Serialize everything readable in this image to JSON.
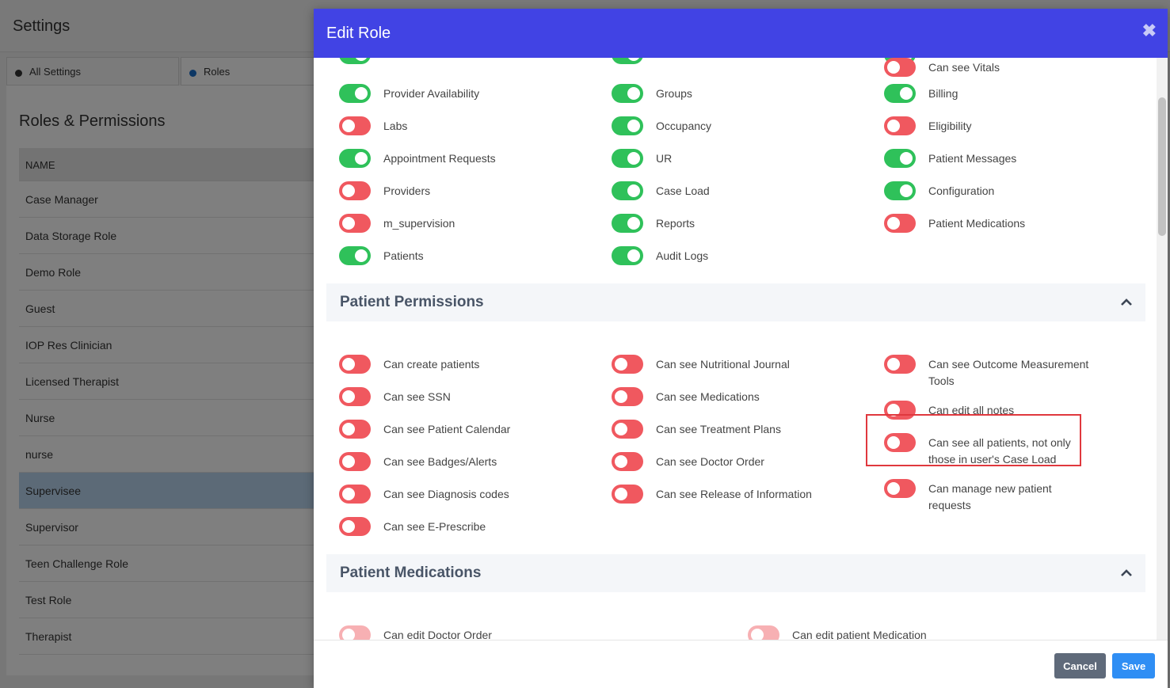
{
  "background": {
    "title": "Settings",
    "tabs": [
      {
        "label": "All Settings",
        "dot_color": "#333333"
      },
      {
        "label": "Roles",
        "dot_color": "#1a6fc9"
      }
    ],
    "section_title": "Roles & Permissions",
    "table_header": "NAME",
    "roles": [
      "Case Manager",
      "Data Storage Role",
      "Demo Role",
      "Guest",
      "IOP Res Clinician",
      "Licensed Therapist",
      "Nurse",
      "nurse",
      "Supervisee",
      "Supervisor",
      "Teen Challenge Role",
      "Test Role",
      "Therapist"
    ],
    "selected_role": "Supervisee"
  },
  "modal": {
    "title": "Edit Role",
    "close_icon": "close-icon",
    "general_permissions": [
      {
        "label": "Provider Availability",
        "on": true
      },
      {
        "label": "Groups",
        "on": true
      },
      {
        "label": "Billing",
        "on": true
      },
      {
        "label": "Labs",
        "on": false
      },
      {
        "label": "Occupancy",
        "on": true
      },
      {
        "label": "Eligibility",
        "on": false
      },
      {
        "label": "Appointment Requests",
        "on": true
      },
      {
        "label": "UR",
        "on": true
      },
      {
        "label": "Patient Messages",
        "on": true
      },
      {
        "label": "Providers",
        "on": false
      },
      {
        "label": "Case Load",
        "on": true
      },
      {
        "label": "Configuration",
        "on": true
      },
      {
        "label": "m_supervision",
        "on": false
      },
      {
        "label": "Reports",
        "on": true
      },
      {
        "label": "Patient Medications",
        "on": false
      },
      {
        "label": "Patients",
        "on": true
      },
      {
        "label": "Audit Logs",
        "on": true
      }
    ],
    "patient_permissions_title": "Patient Permissions",
    "patient_permissions": [
      {
        "label": "Can create patients",
        "on": false
      },
      {
        "label": "Can see Nutritional Journal",
        "on": false
      },
      {
        "label": "Can see Outcome Measurement Tools",
        "on": false
      },
      {
        "label": "Can see SSN",
        "on": false
      },
      {
        "label": "Can see Medications",
        "on": false
      },
      {
        "label": "Can edit all notes",
        "on": false
      },
      {
        "label": "Can see Patient Calendar",
        "on": false
      },
      {
        "label": "Can see Treatment Plans",
        "on": false
      },
      {
        "label": "Can see all patients, not only those in user's Case Load",
        "on": false
      },
      {
        "label": "Can see Badges/Alerts",
        "on": false
      },
      {
        "label": "Can see Doctor Order",
        "on": false
      },
      {
        "label": "Can manage new patient requests",
        "on": false
      },
      {
        "label": "Can see Diagnosis codes",
        "on": false
      },
      {
        "label": "Can see Release of Information",
        "on": false
      },
      {
        "label": "Can see Vitals",
        "on": false
      },
      {
        "label": "Can see E-Prescribe",
        "on": false
      }
    ],
    "patient_medications_title": "Patient Medications",
    "patient_medications": [
      {
        "label": "Can edit Doctor Order",
        "on": false
      },
      {
        "label": "Can edit patient Medication",
        "on": false
      }
    ],
    "footer": {
      "cancel_label": "Cancel",
      "save_label": "Save"
    },
    "colors": {
      "header": "#4143e4",
      "toggle_on": "#2fc15a",
      "toggle_off": "#f0585f",
      "highlight": "#e0383e",
      "save": "#2f8ef4",
      "cancel": "#5f6a7a"
    }
  }
}
